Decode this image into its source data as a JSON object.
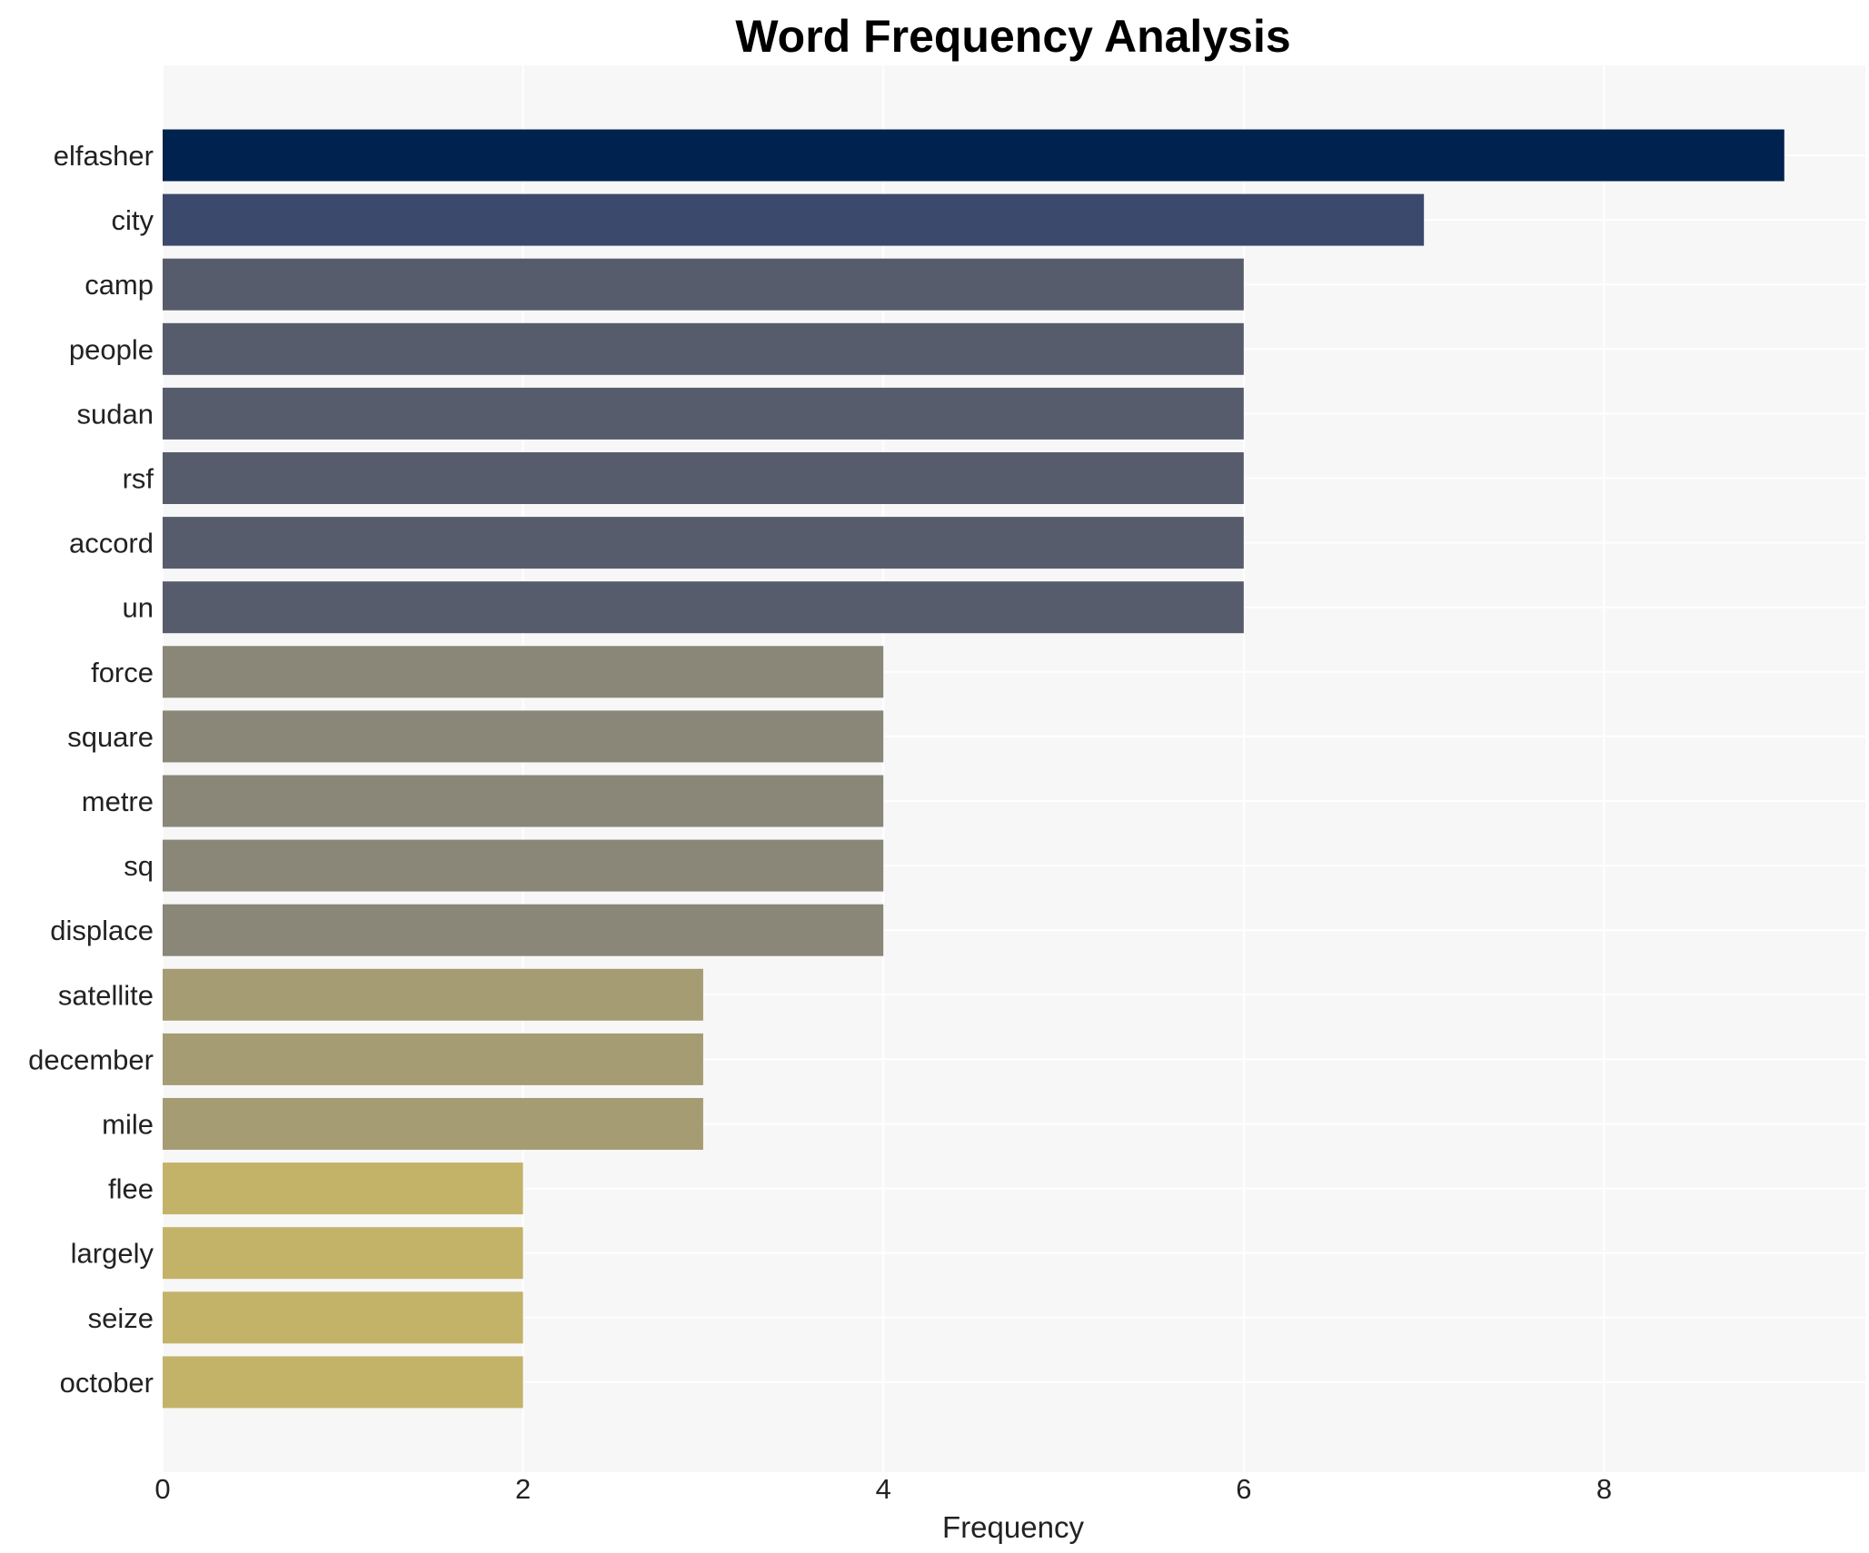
{
  "chart_data": {
    "type": "bar",
    "orientation": "horizontal",
    "title": "Word Frequency Analysis",
    "xlabel": "Frequency",
    "ylabel": "",
    "xlim": [
      0,
      9.45
    ],
    "xticks": [
      0,
      2,
      4,
      6,
      8
    ],
    "grid": true,
    "categories": [
      "elfasher",
      "city",
      "camp",
      "people",
      "sudan",
      "rsf",
      "accord",
      "un",
      "force",
      "square",
      "metre",
      "sq",
      "displace",
      "satellite",
      "december",
      "mile",
      "flee",
      "largely",
      "seize",
      "october"
    ],
    "values": [
      9,
      7,
      6,
      6,
      6,
      6,
      6,
      6,
      4,
      4,
      4,
      4,
      4,
      3,
      3,
      3,
      2,
      2,
      2,
      2
    ],
    "colors": [
      "#00224e",
      "#3b496c",
      "#575c6d",
      "#575c6d",
      "#575c6d",
      "#575c6d",
      "#575c6d",
      "#575c6d",
      "#8a8678",
      "#8a8678",
      "#8a8678",
      "#8a8678",
      "#8a8678",
      "#a59c74",
      "#a59c74",
      "#a59c74",
      "#c3b369",
      "#c3b369",
      "#c3b369",
      "#c3b369"
    ]
  },
  "style": {
    "plot_background": "#f7f7f7",
    "grid_color": "#ffffff"
  }
}
